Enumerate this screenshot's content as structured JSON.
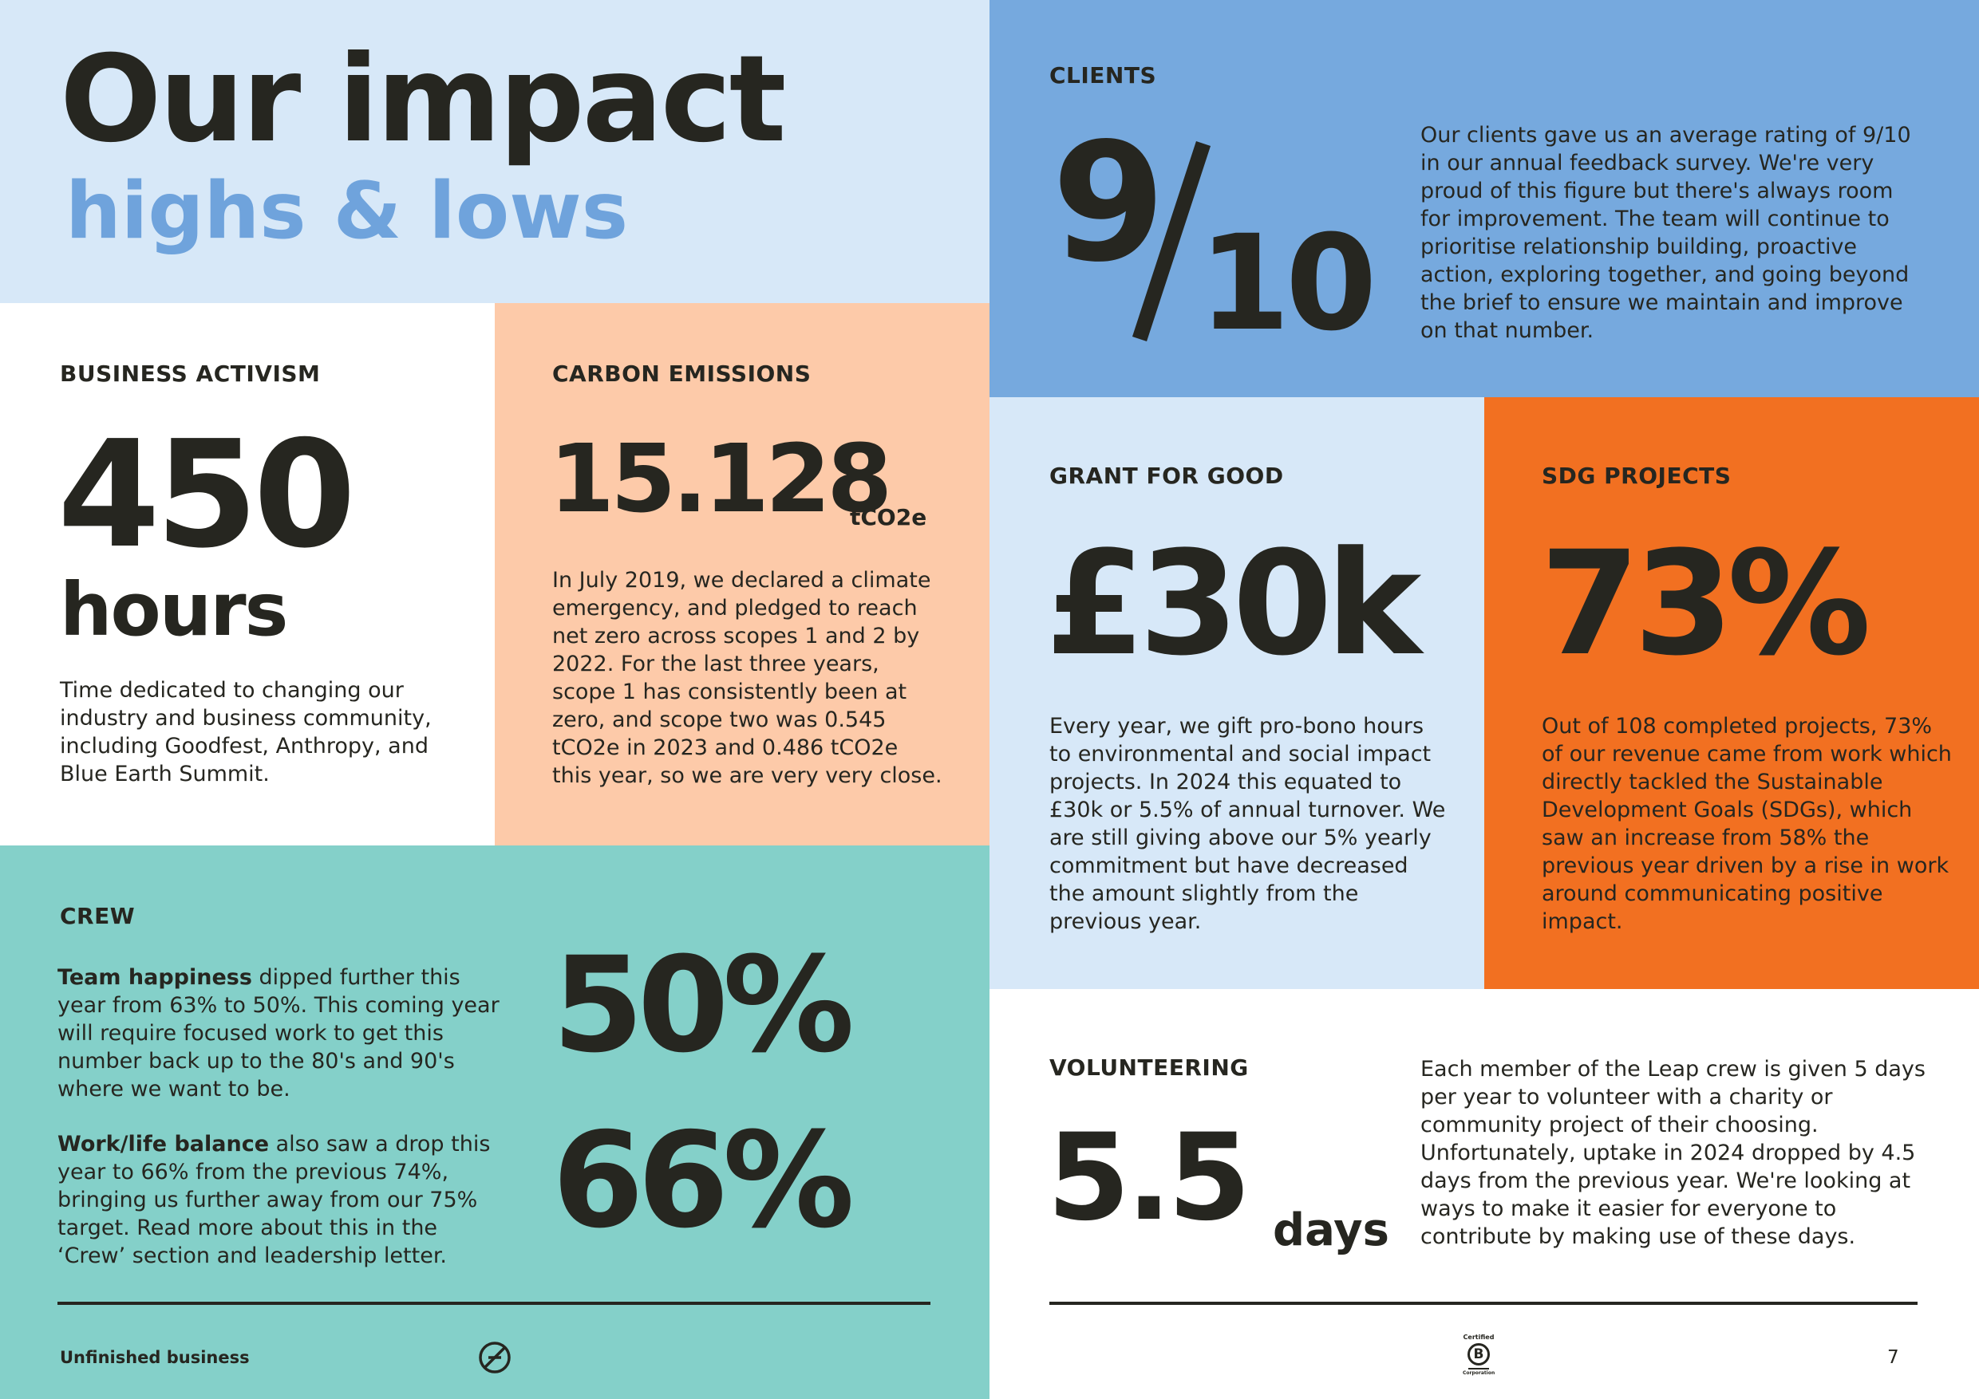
{
  "header": {
    "title": "Our impact",
    "subtitle": "highs & lows"
  },
  "business_activism": {
    "label": "BUSINESS ACTIVISM",
    "figure": "450",
    "unit": "hours",
    "text": "Time dedicated to changing our industry and business community, including Goodfest, Anthropy, and Blue Earth Summit."
  },
  "carbon": {
    "label": "CARBON EMISSIONS",
    "figure": "15.128",
    "unit": "tCO2e",
    "text": "In July 2019, we declared a climate emergency, and pledged to reach net zero across scopes 1 and 2 by 2022. For the last three years, scope 1 has consistently been at zero, and scope two was 0.545 tCO2e in 2023 and 0.486 tCO2e this year, so we are very very close."
  },
  "clients": {
    "label": "CLIENTS",
    "numerator": "9",
    "slash": "/",
    "denominator": "10",
    "text": "Our clients gave us an average rating of 9/10 in our annual feedback survey. We're very proud of this figure but there's always room for improvement. The team will continue to prioritise relationship building, proactive action, exploring together, and going beyond the brief to ensure we maintain and improve on that number."
  },
  "grant": {
    "label": "GRANT FOR GOOD",
    "figure": "£30k",
    "text": "Every year, we gift pro-bono hours to environmental and social impact projects. In 2024 this equated to £30k or 5.5% of annual turnover. We are still giving above our 5% yearly commitment but have decreased the amount slightly from the previous year."
  },
  "sdg": {
    "label": "SDG PROJECTS",
    "figure": "73%",
    "text": "Out of 108 completed projects, 73% of our revenue came from work which directly tackled the Sustainable Development Goals (SDGs), which saw an increase from 58% the previous year driven by a rise in work around communicating positive impact."
  },
  "crew": {
    "label": "CREW",
    "happiness_title": "Team happiness",
    "happiness_text": " dipped further this year from 63% to 50%. This coming year will require focused work to get this number back up to the 80's and 90's where we want to be.",
    "happiness_figure": "50%",
    "balance_title": "Work/life balance",
    "balance_text": " also saw a drop this year to 66% from the previous 74%, bringing us further away from our 75% target. Read more about this in the ‘Crew’ section and leadership letter.",
    "balance_figure": "66%"
  },
  "volunteering": {
    "label": "VOLUNTEERING",
    "figure": "5.5",
    "unit": "days",
    "text": "Each member of the Leap crew is given 5 days per year to volunteer with a charity or community project of their choosing. Unfortunately, uptake in 2024 dropped by 4.5 days from the previous year. We're looking at ways to make it easier for everyone to contribute by making use of these days."
  },
  "footer": {
    "left_text": "Unfinished business",
    "bcorp_top": "Certified",
    "bcorp_letter": "B",
    "bcorp_bottom": "Corporation",
    "page_number": "7"
  },
  "colors": {
    "ink": "#262620",
    "header_bg": "#d7e8f8",
    "subtitle": "#6fa3dc",
    "carbon_bg": "#fdcaa9",
    "clients_bg": "#76a9de",
    "grant_bg": "#d7e8f8",
    "sdg_bg": "#f27021",
    "crew_bg": "#84d0c9"
  }
}
